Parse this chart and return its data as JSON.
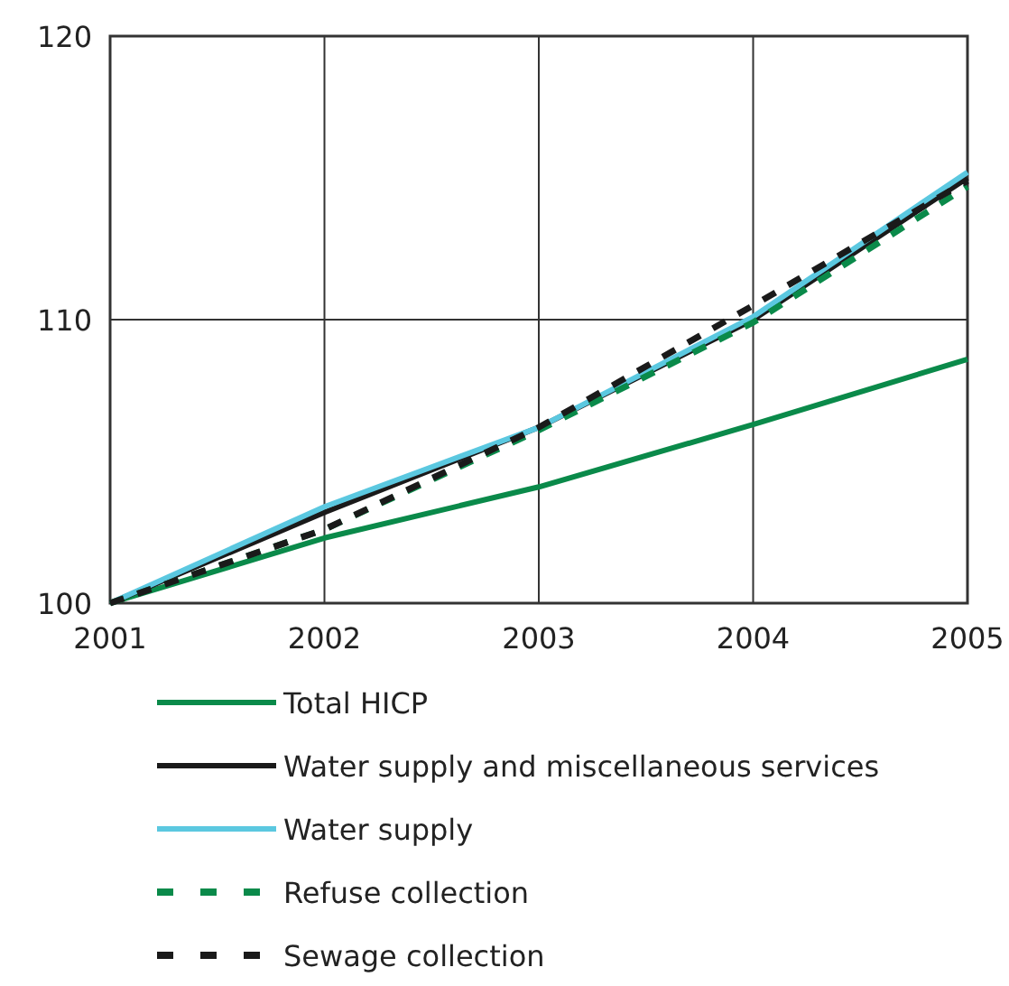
{
  "chart_data": {
    "type": "line",
    "x": [
      2001,
      2002,
      2003,
      2004,
      2005
    ],
    "xlim": [
      2001,
      2005
    ],
    "xticks": [
      2001,
      2002,
      2003,
      2004,
      2005
    ],
    "ylim": [
      100,
      120
    ],
    "yticks": [
      100,
      110,
      120
    ],
    "grid": true,
    "legend": "bottom",
    "series": [
      {
        "name": "Total HICP",
        "color": "#0a8a4a",
        "line_style": "solid",
        "values": [
          100,
          102.3,
          104.1,
          106.3,
          108.6
        ]
      },
      {
        "name": "Water supply and miscellaneous services",
        "color": "#1a1a1a",
        "line_style": "solid",
        "values": [
          100,
          103.2,
          106.2,
          110.0,
          115.0
        ]
      },
      {
        "name": "Water supply",
        "color": "#5bc8e0",
        "line_style": "solid",
        "values": [
          100,
          103.4,
          106.2,
          110.1,
          115.2
        ]
      },
      {
        "name": "Refuse collection",
        "color": "#0a8a4a",
        "line_style": "dashed",
        "values": [
          100,
          102.6,
          106.1,
          109.9,
          114.7
        ]
      },
      {
        "name": "Sewage collection",
        "color": "#1a1a1a",
        "line_style": "dashed",
        "values": [
          100,
          102.6,
          106.2,
          110.5,
          114.9
        ]
      }
    ]
  }
}
